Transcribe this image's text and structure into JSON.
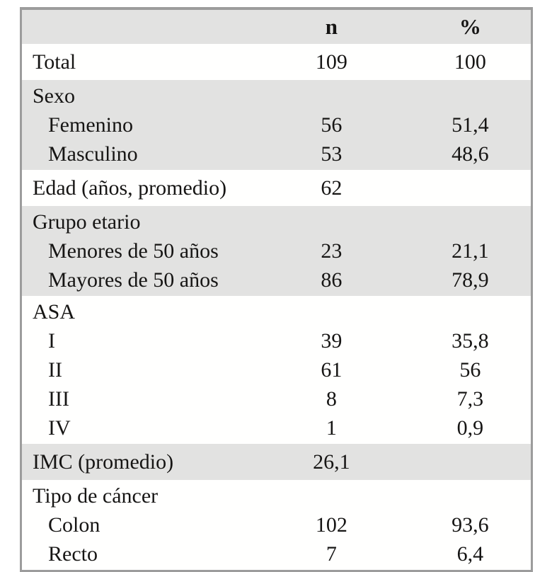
{
  "table": {
    "columns": [
      "",
      "n",
      "%"
    ],
    "sections": [
      {
        "shaded": false,
        "rows": [
          {
            "label": "Total",
            "indent": false,
            "n": "109",
            "pct": "100"
          }
        ]
      },
      {
        "shaded": true,
        "rows": [
          {
            "label": "Sexo",
            "indent": false,
            "n": "",
            "pct": ""
          },
          {
            "label": "Femenino",
            "indent": true,
            "n": "56",
            "pct": "51,4"
          },
          {
            "label": "Masculino",
            "indent": true,
            "n": "53",
            "pct": "48,6"
          }
        ]
      },
      {
        "shaded": false,
        "rows": [
          {
            "label": "Edad (años, promedio)",
            "indent": false,
            "n": "62",
            "pct": ""
          }
        ]
      },
      {
        "shaded": true,
        "rows": [
          {
            "label": "Grupo etario",
            "indent": false,
            "n": "",
            "pct": ""
          },
          {
            "label": "Menores de 50 años",
            "indent": true,
            "n": "23",
            "pct": "21,1"
          },
          {
            "label": "Mayores de 50 años",
            "indent": true,
            "n": "86",
            "pct": "78,9"
          }
        ]
      },
      {
        "shaded": false,
        "rows": [
          {
            "label": "ASA",
            "indent": false,
            "n": "",
            "pct": ""
          },
          {
            "label": "I",
            "indent": true,
            "n": "39",
            "pct": "35,8"
          },
          {
            "label": "II",
            "indent": true,
            "n": "61",
            "pct": "56"
          },
          {
            "label": "III",
            "indent": true,
            "n": "8",
            "pct": "7,3"
          },
          {
            "label": "IV",
            "indent": true,
            "n": "1",
            "pct": "0,9"
          }
        ]
      },
      {
        "shaded": true,
        "rows": [
          {
            "label": "IMC (promedio)",
            "indent": false,
            "n": "26,1",
            "pct": ""
          }
        ]
      },
      {
        "shaded": false,
        "rows": [
          {
            "label": "Tipo de cáncer",
            "indent": false,
            "n": "",
            "pct": ""
          },
          {
            "label": "Colon",
            "indent": true,
            "n": "102",
            "pct": "93,6"
          },
          {
            "label": "Recto",
            "indent": true,
            "n": "7",
            "pct": "6,4"
          }
        ]
      }
    ]
  },
  "colors": {
    "shaded_band": "#e2e2e1",
    "plain_band": "#fffffe",
    "border": "#9c9c9c",
    "text": "#161514"
  }
}
